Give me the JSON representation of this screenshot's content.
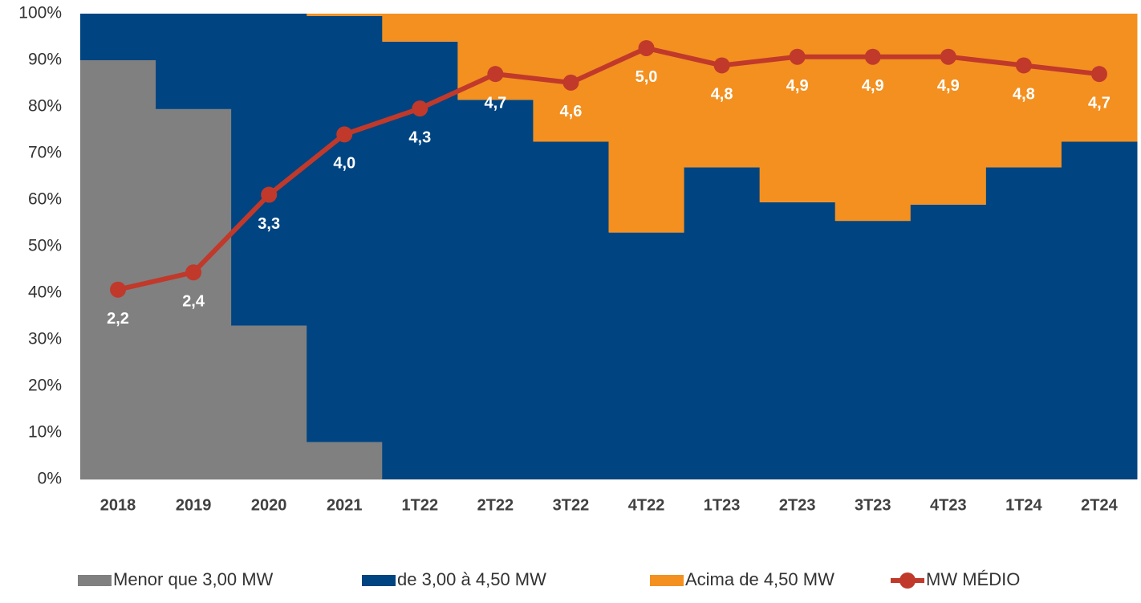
{
  "chart_data": {
    "type": "bar",
    "stacked": true,
    "categories": [
      "2018",
      "2019",
      "2020",
      "2021",
      "1T22",
      "2T22",
      "3T22",
      "4T22",
      "1T23",
      "2T23",
      "3T23",
      "4T23",
      "1T24",
      "2T24"
    ],
    "series": [
      {
        "name": "Menor que 3,00 MW",
        "color": "#808080",
        "values": [
          90,
          79.5,
          33,
          8,
          0,
          0,
          0,
          0,
          0,
          0,
          0,
          0,
          0,
          0
        ]
      },
      {
        "name": "de 3,00 à 4,50 MW",
        "color": "#004481",
        "values": [
          10,
          20.5,
          67,
          91.5,
          94,
          81.5,
          72.5,
          53,
          67,
          59.5,
          55.5,
          59,
          67,
          72.5
        ]
      },
      {
        "name": "Acima de 4,50 MW",
        "color": "#f39020",
        "values": [
          0,
          0,
          0,
          0.5,
          6,
          18.5,
          27.5,
          47,
          33,
          40.5,
          44.5,
          41,
          33,
          27.5
        ]
      },
      {
        "name": "MW MÉDIO",
        "type": "line",
        "axis": "y2",
        "color": "#c0392b",
        "values": [
          2.2,
          2.4,
          3.3,
          4.0,
          4.3,
          4.7,
          4.6,
          5.0,
          4.8,
          4.9,
          4.9,
          4.9,
          4.8,
          4.7
        ],
        "value_labels": [
          "2,2",
          "2,4",
          "3,3",
          "4,0",
          "4,3",
          "4,7",
          "4,6",
          "5,0",
          "4,8",
          "4,9",
          "4,9",
          "4,9",
          "4,8",
          "4,7"
        ]
      }
    ],
    "ylim": [
      0,
      100
    ],
    "yticks": [
      {
        "value": 0,
        "label": "0%"
      },
      {
        "value": 10,
        "label": "10%"
      },
      {
        "value": 20,
        "label": "20%"
      },
      {
        "value": 30,
        "label": "30%"
      },
      {
        "value": 40,
        "label": "40%"
      },
      {
        "value": 50,
        "label": "50%"
      },
      {
        "value": 60,
        "label": "60%"
      },
      {
        "value": 70,
        "label": "70%"
      },
      {
        "value": 80,
        "label": "80%"
      },
      {
        "value": 90,
        "label": "90%"
      },
      {
        "value": 100,
        "label": "100%"
      }
    ],
    "y2lim": [
      0,
      5.4
    ],
    "legend": "bottom"
  }
}
